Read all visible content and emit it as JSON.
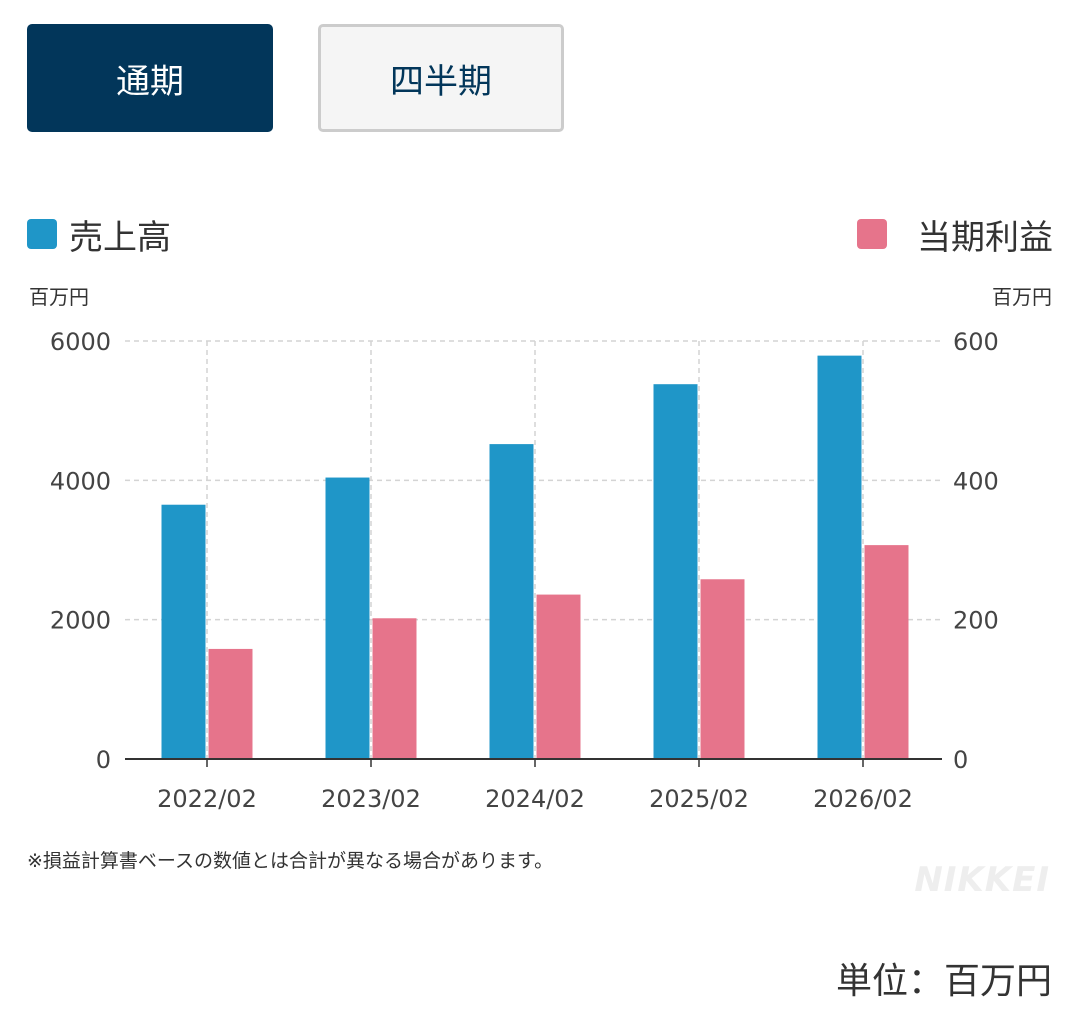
{
  "tabs": [
    {
      "label": "通期",
      "active": true
    },
    {
      "label": "四半期",
      "active": false
    }
  ],
  "legend": {
    "sales": {
      "label": "売上高",
      "color": "#1f96c8"
    },
    "profit": {
      "label": "当期利益",
      "color": "#e6748b"
    }
  },
  "units": {
    "left": "百万円",
    "right": "百万円",
    "footer": "単位：百万円"
  },
  "note": "※損益計算書ベースの数値とは合計が異なる場合があります。",
  "logo": "NIKKEI",
  "chart_data": {
    "type": "bar",
    "categories": [
      "2022/02",
      "2023/02",
      "2024/02",
      "2025/02",
      "2026/02"
    ],
    "series": [
      {
        "name": "売上高",
        "axis": "left",
        "color": "#1f96c8",
        "values": [
          3650,
          4040,
          4520,
          5380,
          5790
        ]
      },
      {
        "name": "当期利益",
        "axis": "right",
        "color": "#e6748b",
        "values": [
          158,
          202,
          236,
          258,
          307
        ]
      }
    ],
    "y_left": {
      "label": "百万円",
      "ylim": [
        0,
        6000
      ],
      "ticks": [
        "0",
        "2000",
        "4000",
        "6000"
      ]
    },
    "y_right": {
      "label": "百万円",
      "ylim": [
        0,
        600
      ],
      "ticks": [
        "0",
        "200",
        "400",
        "600"
      ]
    },
    "grid": true,
    "legend_position": "top"
  }
}
